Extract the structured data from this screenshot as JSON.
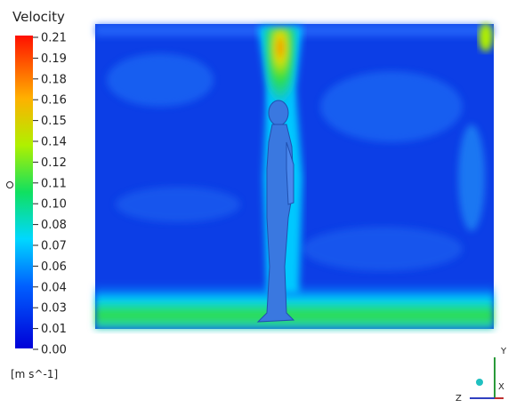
{
  "legend": {
    "title": "Velocity",
    "ticks": [
      "0.21",
      "0.19",
      "0.18",
      "0.16",
      "0.15",
      "0.14",
      "0.12",
      "0.11",
      "0.10",
      "0.08",
      "0.07",
      "0.06",
      "0.04",
      "0.03",
      "0.01",
      "0.00"
    ],
    "unit": "[m s^-1]"
  },
  "axes": {
    "y": "Y",
    "z": "Z",
    "x": "X"
  }
}
